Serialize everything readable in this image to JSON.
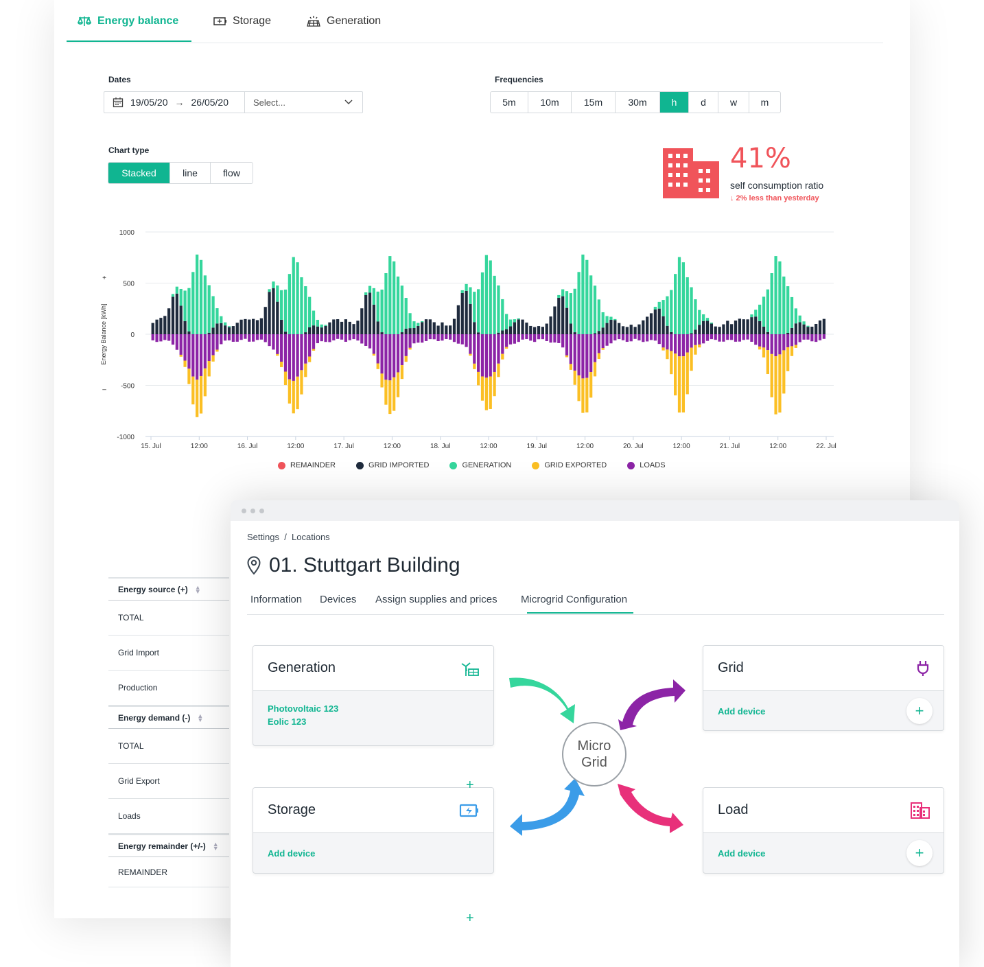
{
  "tabs": [
    {
      "label": "Energy balance",
      "icon": "balance-scale-icon",
      "active": true
    },
    {
      "label": "Storage",
      "icon": "battery-icon",
      "active": false
    },
    {
      "label": "Generation",
      "icon": "solar-panel-icon",
      "active": false
    }
  ],
  "dates": {
    "label": "Dates",
    "start": "19/05/20",
    "end": "26/05/20",
    "select_placeholder": "Select..."
  },
  "frequencies": {
    "label": "Frequencies",
    "options": [
      "5m",
      "10m",
      "15m",
      "30m",
      "h",
      "d",
      "w",
      "m"
    ],
    "selected": "h"
  },
  "chart_type": {
    "label": "Chart type",
    "options": [
      "Stacked",
      "line",
      "flow"
    ],
    "selected": "Stacked"
  },
  "kpi": {
    "value": "41%",
    "label": "self consumption ratio",
    "delta": "↓ 2% less than yesterday",
    "color": "#f0545a"
  },
  "chart_data": {
    "type": "bar",
    "stacked": true,
    "ylabel": "Energy Balance [kWh]",
    "ylim": [
      -1000,
      1000
    ],
    "yticks": [
      1000,
      500,
      0,
      -500,
      -1000
    ],
    "y_plus_marker": "+",
    "y_minus_marker": "–",
    "xtick_labels": [
      "15. Jul",
      "12:00",
      "16. Jul",
      "12:00",
      "17. Jul",
      "12:00",
      "18. Jul",
      "12:00",
      "19. Jul",
      "12:00",
      "20. Jul",
      "12:00",
      "21. Jul",
      "12:00",
      "22. Jul"
    ],
    "hours_per_day": 24,
    "days": 7,
    "legend": [
      {
        "name": "REMAINDER",
        "color": "#f0545a"
      },
      {
        "name": "GRID IMPORTED",
        "color": "#1f2b3d"
      },
      {
        "name": "GENERATION",
        "color": "#35d69c"
      },
      {
        "name": "GRID EXPORTED",
        "color": "#fbbf24"
      },
      {
        "name": "LOADS",
        "color": "#8c24a6"
      }
    ],
    "daily_peak": {
      "generation": [
        795,
        770,
        780,
        790,
        795,
        770,
        780
      ],
      "loads": [
        -430,
        -450,
        -460,
        -440,
        -440,
        -210,
        -200
      ],
      "grid_exported": [
        -810,
        -780,
        -800,
        -770,
        -790,
        -780,
        -790
      ],
      "grid_imported_max": [
        460,
        520,
        470,
        490,
        430,
        290,
        200
      ]
    }
  },
  "summary_table": {
    "sections": [
      {
        "header": "Energy source (+)",
        "rows": [
          "TOTAL",
          "Grid Import",
          "Production"
        ]
      },
      {
        "header": "Energy demand (-)",
        "rows": [
          "TOTAL",
          "Grid Export",
          "Loads"
        ]
      },
      {
        "header": "Energy remainder (+/-)",
        "rows": [
          "REMAINDER"
        ]
      }
    ]
  },
  "location": {
    "breadcrumb": "Settings  /  Locations",
    "title": "01. Stuttgart Building",
    "tabs": [
      "Information",
      "Devices",
      "Assign supplies and prices",
      "Microgrid Configuration"
    ],
    "active_tab": "Microgrid Configuration",
    "center_line1": "Micro",
    "center_line2": "Grid",
    "cards": {
      "generation": {
        "title": "Generation",
        "items": [
          "Photovoltaic 123",
          "Eolic 123"
        ]
      },
      "grid": {
        "title": "Grid",
        "action": "Add device"
      },
      "storage": {
        "title": "Storage",
        "action": "Add device"
      },
      "load": {
        "title": "Load",
        "action": "Add device"
      }
    },
    "arrow_colors": {
      "generation": "#35d69c",
      "grid": "#8c24a6",
      "storage": "#3b9ce8",
      "load": "#e8307a"
    }
  }
}
